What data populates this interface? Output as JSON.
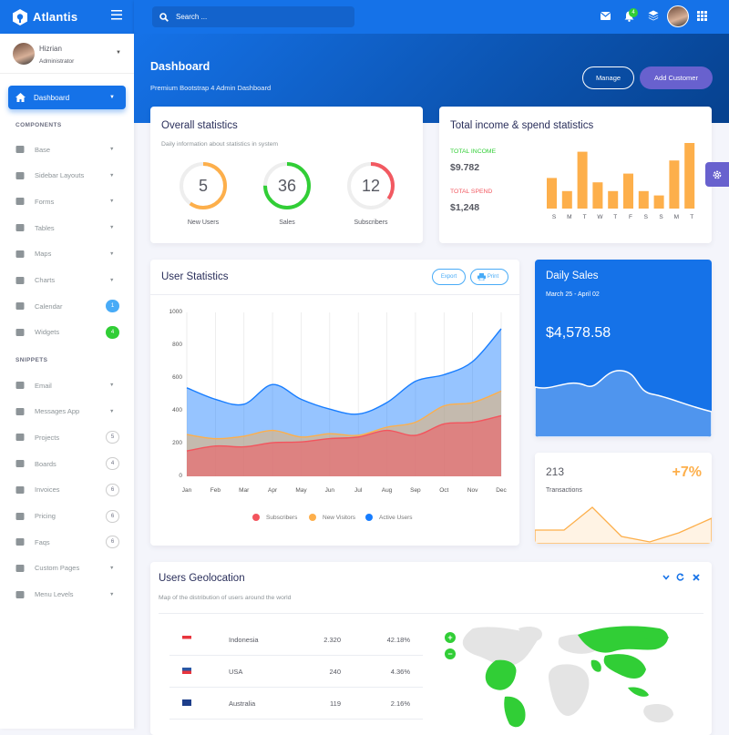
{
  "app": {
    "brand": "Atlantis"
  },
  "topbar": {
    "search_placeholder": "Search ...",
    "notification_count": "4"
  },
  "user": {
    "name": "Hizrian",
    "role": "Administrator"
  },
  "sidebar": {
    "active": "Dashboard",
    "components_heading": "COMPONENTS",
    "snippets_heading": "SNIPPETS",
    "components": [
      {
        "label": "Base",
        "icon": "layers-icon"
      },
      {
        "label": "Sidebar Layouts",
        "icon": "th-list-icon"
      },
      {
        "label": "Forms",
        "icon": "pen-square-icon"
      },
      {
        "label": "Tables",
        "icon": "table-icon"
      },
      {
        "label": "Maps",
        "icon": "map-marker-icon"
      },
      {
        "label": "Charts",
        "icon": "bar-chart-icon"
      },
      {
        "label": "Calendar",
        "icon": "calendar-icon",
        "badge": "1",
        "badge_color": "#48abf7"
      },
      {
        "label": "Widgets",
        "icon": "desktop-icon",
        "badge": "4",
        "badge_color": "#31ce36"
      }
    ],
    "snippets": [
      {
        "label": "Email",
        "icon": "envelope-icon"
      },
      {
        "label": "Messages App",
        "icon": "paper-plane-icon"
      },
      {
        "label": "Projects",
        "icon": "file-signature-icon",
        "count": "5"
      },
      {
        "label": "Boards",
        "icon": "th-list-icon",
        "count": "4"
      },
      {
        "label": "Invoices",
        "icon": "file-invoice-icon",
        "count": "6"
      },
      {
        "label": "Pricing",
        "icon": "tag-icon",
        "count": "6"
      },
      {
        "label": "Faqs",
        "icon": "question-circle-icon",
        "count": "6"
      },
      {
        "label": "Custom Pages",
        "icon": "paint-roller-icon"
      },
      {
        "label": "Menu Levels",
        "icon": "bars-icon"
      }
    ]
  },
  "header": {
    "title": "Dashboard",
    "subtitle": "Premium Bootstrap 4 Admin Dashboard",
    "manage_label": "Manage",
    "add_label": "Add Customer"
  },
  "overall": {
    "title": "Overall statistics",
    "subtitle": "Daily information about statistics in system",
    "circles": [
      {
        "value": "5",
        "label": "New Users",
        "color": "#fdaf4b",
        "fraction": 0.6
      },
      {
        "value": "36",
        "label": "Sales",
        "color": "#31ce36",
        "fraction": 0.75
      },
      {
        "value": "12",
        "label": "Subscribers",
        "color": "#f25961",
        "fraction": 0.35
      }
    ]
  },
  "income": {
    "title": "Total income & spend statistics",
    "income_label": "TOTAL INCOME",
    "income_value": "$9.782",
    "spend_label": "TOTAL SPEND",
    "spend_value": "$1,248",
    "bar_color": "#fdaf4b",
    "days": [
      "S",
      "M",
      "T",
      "W",
      "T",
      "F",
      "S",
      "S",
      "M",
      "T"
    ],
    "bars": [
      7,
      4,
      13,
      6,
      4,
      8,
      4,
      3,
      11,
      15
    ]
  },
  "user_stats": {
    "title": "User Statistics",
    "export_label": "Export",
    "print_label": "Print",
    "legend": [
      {
        "name": "Subscribers",
        "color": "#f3545d"
      },
      {
        "name": "New Visitors",
        "color": "#fdaf4b"
      },
      {
        "name": "Active Users",
        "color": "#177dff"
      }
    ]
  },
  "chart_data": {
    "type": "area",
    "x": [
      "Jan",
      "Feb",
      "Mar",
      "Apr",
      "May",
      "Jun",
      "Jul",
      "Aug",
      "Sep",
      "Oct",
      "Nov",
      "Dec"
    ],
    "ylim": [
      0,
      1000
    ],
    "yticks": [
      0,
      200,
      400,
      600,
      800,
      1000
    ],
    "series": [
      {
        "name": "Subscribers",
        "values": [
          155,
          185,
          180,
          205,
          210,
          230,
          240,
          280,
          250,
          320,
          330,
          370
        ]
      },
      {
        "name": "New Visitors",
        "values": [
          255,
          230,
          245,
          280,
          240,
          260,
          250,
          300,
          330,
          430,
          450,
          520
        ]
      },
      {
        "name": "Active Users",
        "values": [
          540,
          470,
          440,
          560,
          470,
          410,
          380,
          450,
          580,
          620,
          700,
          900
        ]
      }
    ]
  },
  "daily_sales": {
    "title": "Daily Sales",
    "range": "March 25 - April 02",
    "value": "$4,578.58"
  },
  "transactions": {
    "count": "213",
    "label": "Transactions",
    "change": "+7%",
    "color": "#fdaf4b"
  },
  "geo": {
    "title": "Users Geolocation",
    "subtitle": "Map of the distribution of users around the world",
    "rows": [
      {
        "country": "Indonesia",
        "users": "2.320",
        "percent": "42.18%"
      },
      {
        "country": "USA",
        "users": "240",
        "percent": "4.36%"
      },
      {
        "country": "Australia",
        "users": "119",
        "percent": "2.16%"
      }
    ]
  }
}
